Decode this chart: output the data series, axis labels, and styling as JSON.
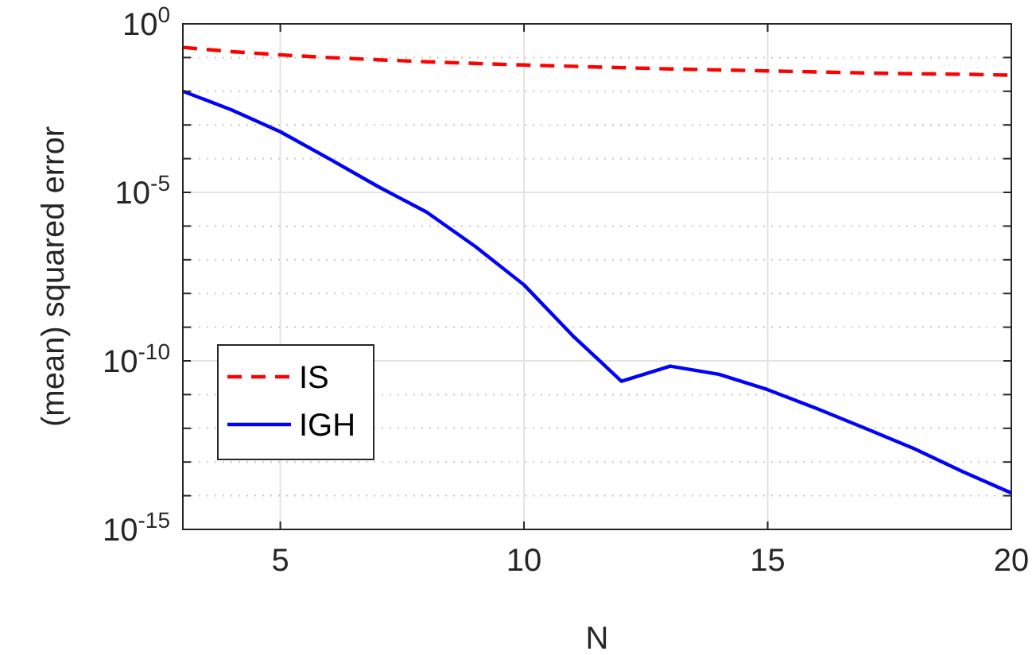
{
  "chart_data": {
    "type": "line",
    "xlabel": "N",
    "ylabel": "(mean) squared error",
    "log": "y",
    "grid": true,
    "legend": "bottom left",
    "xlim": [
      3,
      20
    ],
    "xticks": [
      5,
      10,
      15,
      20
    ],
    "ylim": [
      1e-15,
      1
    ],
    "yticks": [
      {
        "value": 1e-15,
        "label": "10$^{-15}$"
      },
      {
        "value": 1e-14,
        "label": null
      },
      {
        "value": 1e-13,
        "label": null
      },
      {
        "value": 1e-12,
        "label": null
      },
      {
        "value": 1e-11,
        "label": null
      },
      {
        "value": 1e-10,
        "label": "10$^{-10}$"
      },
      {
        "value": 1e-09,
        "label": null
      },
      {
        "value": 1e-08,
        "label": null
      },
      {
        "value": 1e-07,
        "label": null
      },
      {
        "value": 1e-06,
        "label": null
      },
      {
        "value": 1e-05,
        "label": "10$^{-5}$"
      },
      {
        "value": 0.0001,
        "label": null
      },
      {
        "value": 0.001,
        "label": null
      },
      {
        "value": 0.01,
        "label": null
      },
      {
        "value": 0.1,
        "label": null
      },
      {
        "value": 1,
        "label": "10$^{0}$"
      }
    ],
    "x": [
      3,
      4,
      5,
      6,
      7,
      8,
      9,
      10,
      11,
      12,
      13,
      14,
      15,
      16,
      17,
      18,
      19,
      20
    ],
    "series": [
      {
        "name": "IS",
        "color": "#ff0000",
        "line_style": "dashed",
        "values": [
          0.2,
          0.15,
          0.12,
          0.1,
          0.086,
          0.075,
          0.067,
          0.06,
          0.055,
          0.05,
          0.046,
          0.043,
          0.04,
          0.0375,
          0.035,
          0.033,
          0.032,
          0.03
        ]
      },
      {
        "name": "IGH",
        "color": "#0000ff",
        "line_style": "solid",
        "values": [
          0.01,
          0.0028,
          0.00063,
          0.0001,
          1.5e-05,
          2.6e-06,
          2.5e-07,
          1.8e-08,
          5.6e-10,
          2.5e-11,
          7e-11,
          4e-11,
          1.4e-11,
          3.9e-12,
          1e-12,
          2.5e-13,
          5.2e-14,
          1.2e-14
        ]
      }
    ]
  }
}
